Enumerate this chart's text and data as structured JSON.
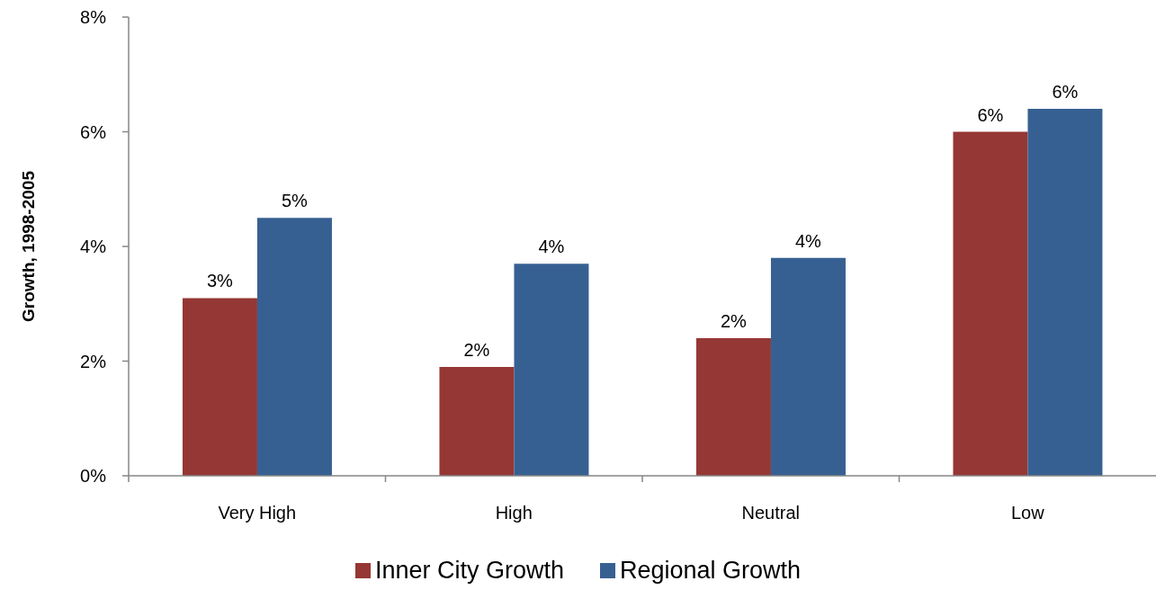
{
  "chart_data": {
    "type": "bar",
    "categories": [
      "Very High",
      "High",
      "Neutral",
      "Low"
    ],
    "series": [
      {
        "name": "Inner City Growth",
        "color": "#953735",
        "values": [
          3.1,
          1.9,
          2.4,
          6.0
        ],
        "value_labels": [
          "3%",
          "2%",
          "2%",
          "6%"
        ]
      },
      {
        "name": "Regional Growth",
        "color": "#376092",
        "values": [
          4.5,
          3.7,
          3.8,
          6.4
        ],
        "value_labels": [
          "5%",
          "4%",
          "4%",
          "6%"
        ]
      }
    ],
    "ylabel": "Growth, 1998-2005",
    "ylim": [
      0,
      8
    ],
    "yticks": [
      {
        "value": 0,
        "label": "0%"
      },
      {
        "value": 2,
        "label": "2%"
      },
      {
        "value": 4,
        "label": "4%"
      },
      {
        "value": 6,
        "label": "6%"
      },
      {
        "value": 8,
        "label": "8%"
      }
    ],
    "legend": "bottom"
  }
}
